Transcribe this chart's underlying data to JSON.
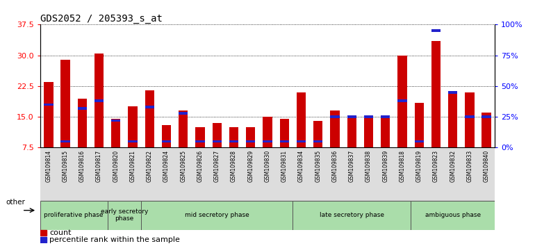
{
  "title": "GDS2052 / 205393_s_at",
  "samples": [
    "GSM109814",
    "GSM109815",
    "GSM109816",
    "GSM109817",
    "GSM109820",
    "GSM109821",
    "GSM109822",
    "GSM109824",
    "GSM109825",
    "GSM109826",
    "GSM109827",
    "GSM109828",
    "GSM109829",
    "GSM109830",
    "GSM109831",
    "GSM109834",
    "GSM109835",
    "GSM109836",
    "GSM109837",
    "GSM109838",
    "GSM109839",
    "GSM109818",
    "GSM109819",
    "GSM109823",
    "GSM109832",
    "GSM109833",
    "GSM109840"
  ],
  "count_values": [
    23.5,
    29.0,
    19.5,
    30.5,
    14.5,
    17.5,
    21.5,
    13.0,
    16.5,
    12.5,
    13.5,
    12.5,
    12.5,
    15.0,
    14.5,
    21.0,
    14.0,
    16.5,
    15.0,
    15.0,
    15.0,
    30.0,
    18.5,
    33.5,
    21.0,
    21.0,
    16.0
  ],
  "percentile_values_pct": [
    35,
    5,
    32,
    38,
    22,
    5,
    33,
    5,
    28,
    5,
    5,
    5,
    5,
    5,
    5,
    5,
    5,
    25,
    25,
    25,
    25,
    38,
    5,
    95,
    45,
    25,
    25
  ],
  "ylim_left": [
    7.5,
    37.5
  ],
  "yticks_left": [
    7.5,
    15.0,
    22.5,
    30.0,
    37.5
  ],
  "ylim_right": [
    0,
    100
  ],
  "yticks_right": [
    0,
    25,
    50,
    75,
    100
  ],
  "bar_color_red": "#cc0000",
  "bar_color_blue": "#2222cc",
  "phases": [
    {
      "label": "proliferative phase",
      "start": 0,
      "end": 4
    },
    {
      "label": "early secretory\nphase",
      "start": 4,
      "end": 6
    },
    {
      "label": "mid secretory phase",
      "start": 6,
      "end": 15
    },
    {
      "label": "late secretory phase",
      "start": 15,
      "end": 22
    },
    {
      "label": "ambiguous phase",
      "start": 22,
      "end": 27
    }
  ],
  "phase_color": "#aaddaa",
  "other_label": "other",
  "legend_count": "count",
  "legend_pct": "percentile rank within the sample",
  "bar_width": 0.55
}
